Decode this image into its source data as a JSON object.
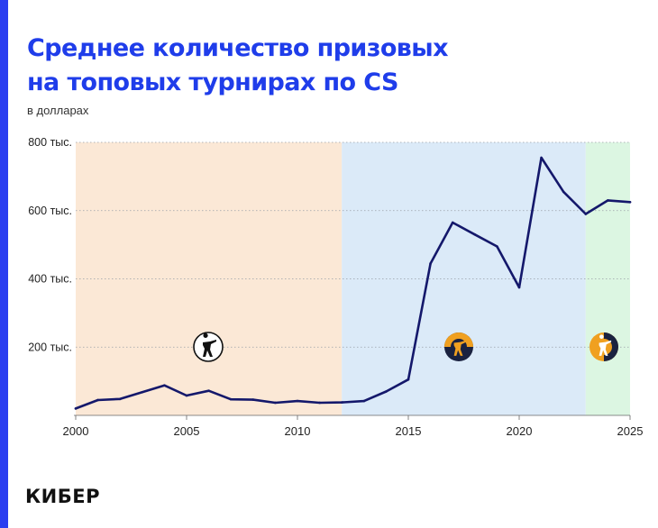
{
  "title_lines": [
    "Среднее количество призовых",
    "на топовых турнирах по CS"
  ],
  "subtitle": "в долларах",
  "logo": "КИБЕР",
  "colors": {
    "accent": "#2b3ef0",
    "line": "#14186b",
    "era_1": "#fbe8d6",
    "era_2": "#dbeaf8",
    "era_3": "#dcf6e2"
  },
  "chart_data": {
    "type": "line",
    "title": "Среднее количество призовых на топовых турнирах по CS",
    "subtitle": "в долларах",
    "xlim": [
      2000,
      2025
    ],
    "ylim": [
      0,
      800000
    ],
    "x_ticks": [
      2000,
      2005,
      2010,
      2015,
      2020,
      2025
    ],
    "x_tick_labels": [
      "2000",
      "2005",
      "2010",
      "2015",
      "2020",
      "2025"
    ],
    "y_ticks": [
      200000,
      400000,
      600000,
      800000
    ],
    "y_tick_labels": [
      "200 тыс.",
      "400 тыс.",
      "600 тыс.",
      "800 тыс."
    ],
    "grid": "horizontal",
    "series": [
      {
        "x": [
          2000,
          2001,
          2002,
          2003,
          2004,
          2005,
          2006,
          2007,
          2008,
          2009,
          2010,
          2011,
          2012,
          2013,
          2014,
          2015,
          2016,
          2017,
          2018,
          2019,
          2020,
          2021,
          2022,
          2023,
          2024,
          2025
        ],
        "y": [
          20000,
          45000,
          48000,
          68000,
          88000,
          58000,
          72000,
          47000,
          46000,
          37000,
          42000,
          37000,
          38000,
          42000,
          70000,
          105000,
          445000,
          565000,
          530000,
          495000,
          375000,
          755000,
          655000,
          590000,
          630000,
          625000
        ]
      }
    ],
    "eras": [
      {
        "from": 2000,
        "to": 2012,
        "color": "#fbe8d6",
        "icon": "counter-strike-1.6-logo-icon"
      },
      {
        "from": 2012,
        "to": 2023,
        "color": "#dbeaf8",
        "icon": "cs-go-logo-icon"
      },
      {
        "from": 2023,
        "to": 2025,
        "color": "#dcf6e2",
        "icon": "cs2-logo-icon"
      }
    ]
  }
}
